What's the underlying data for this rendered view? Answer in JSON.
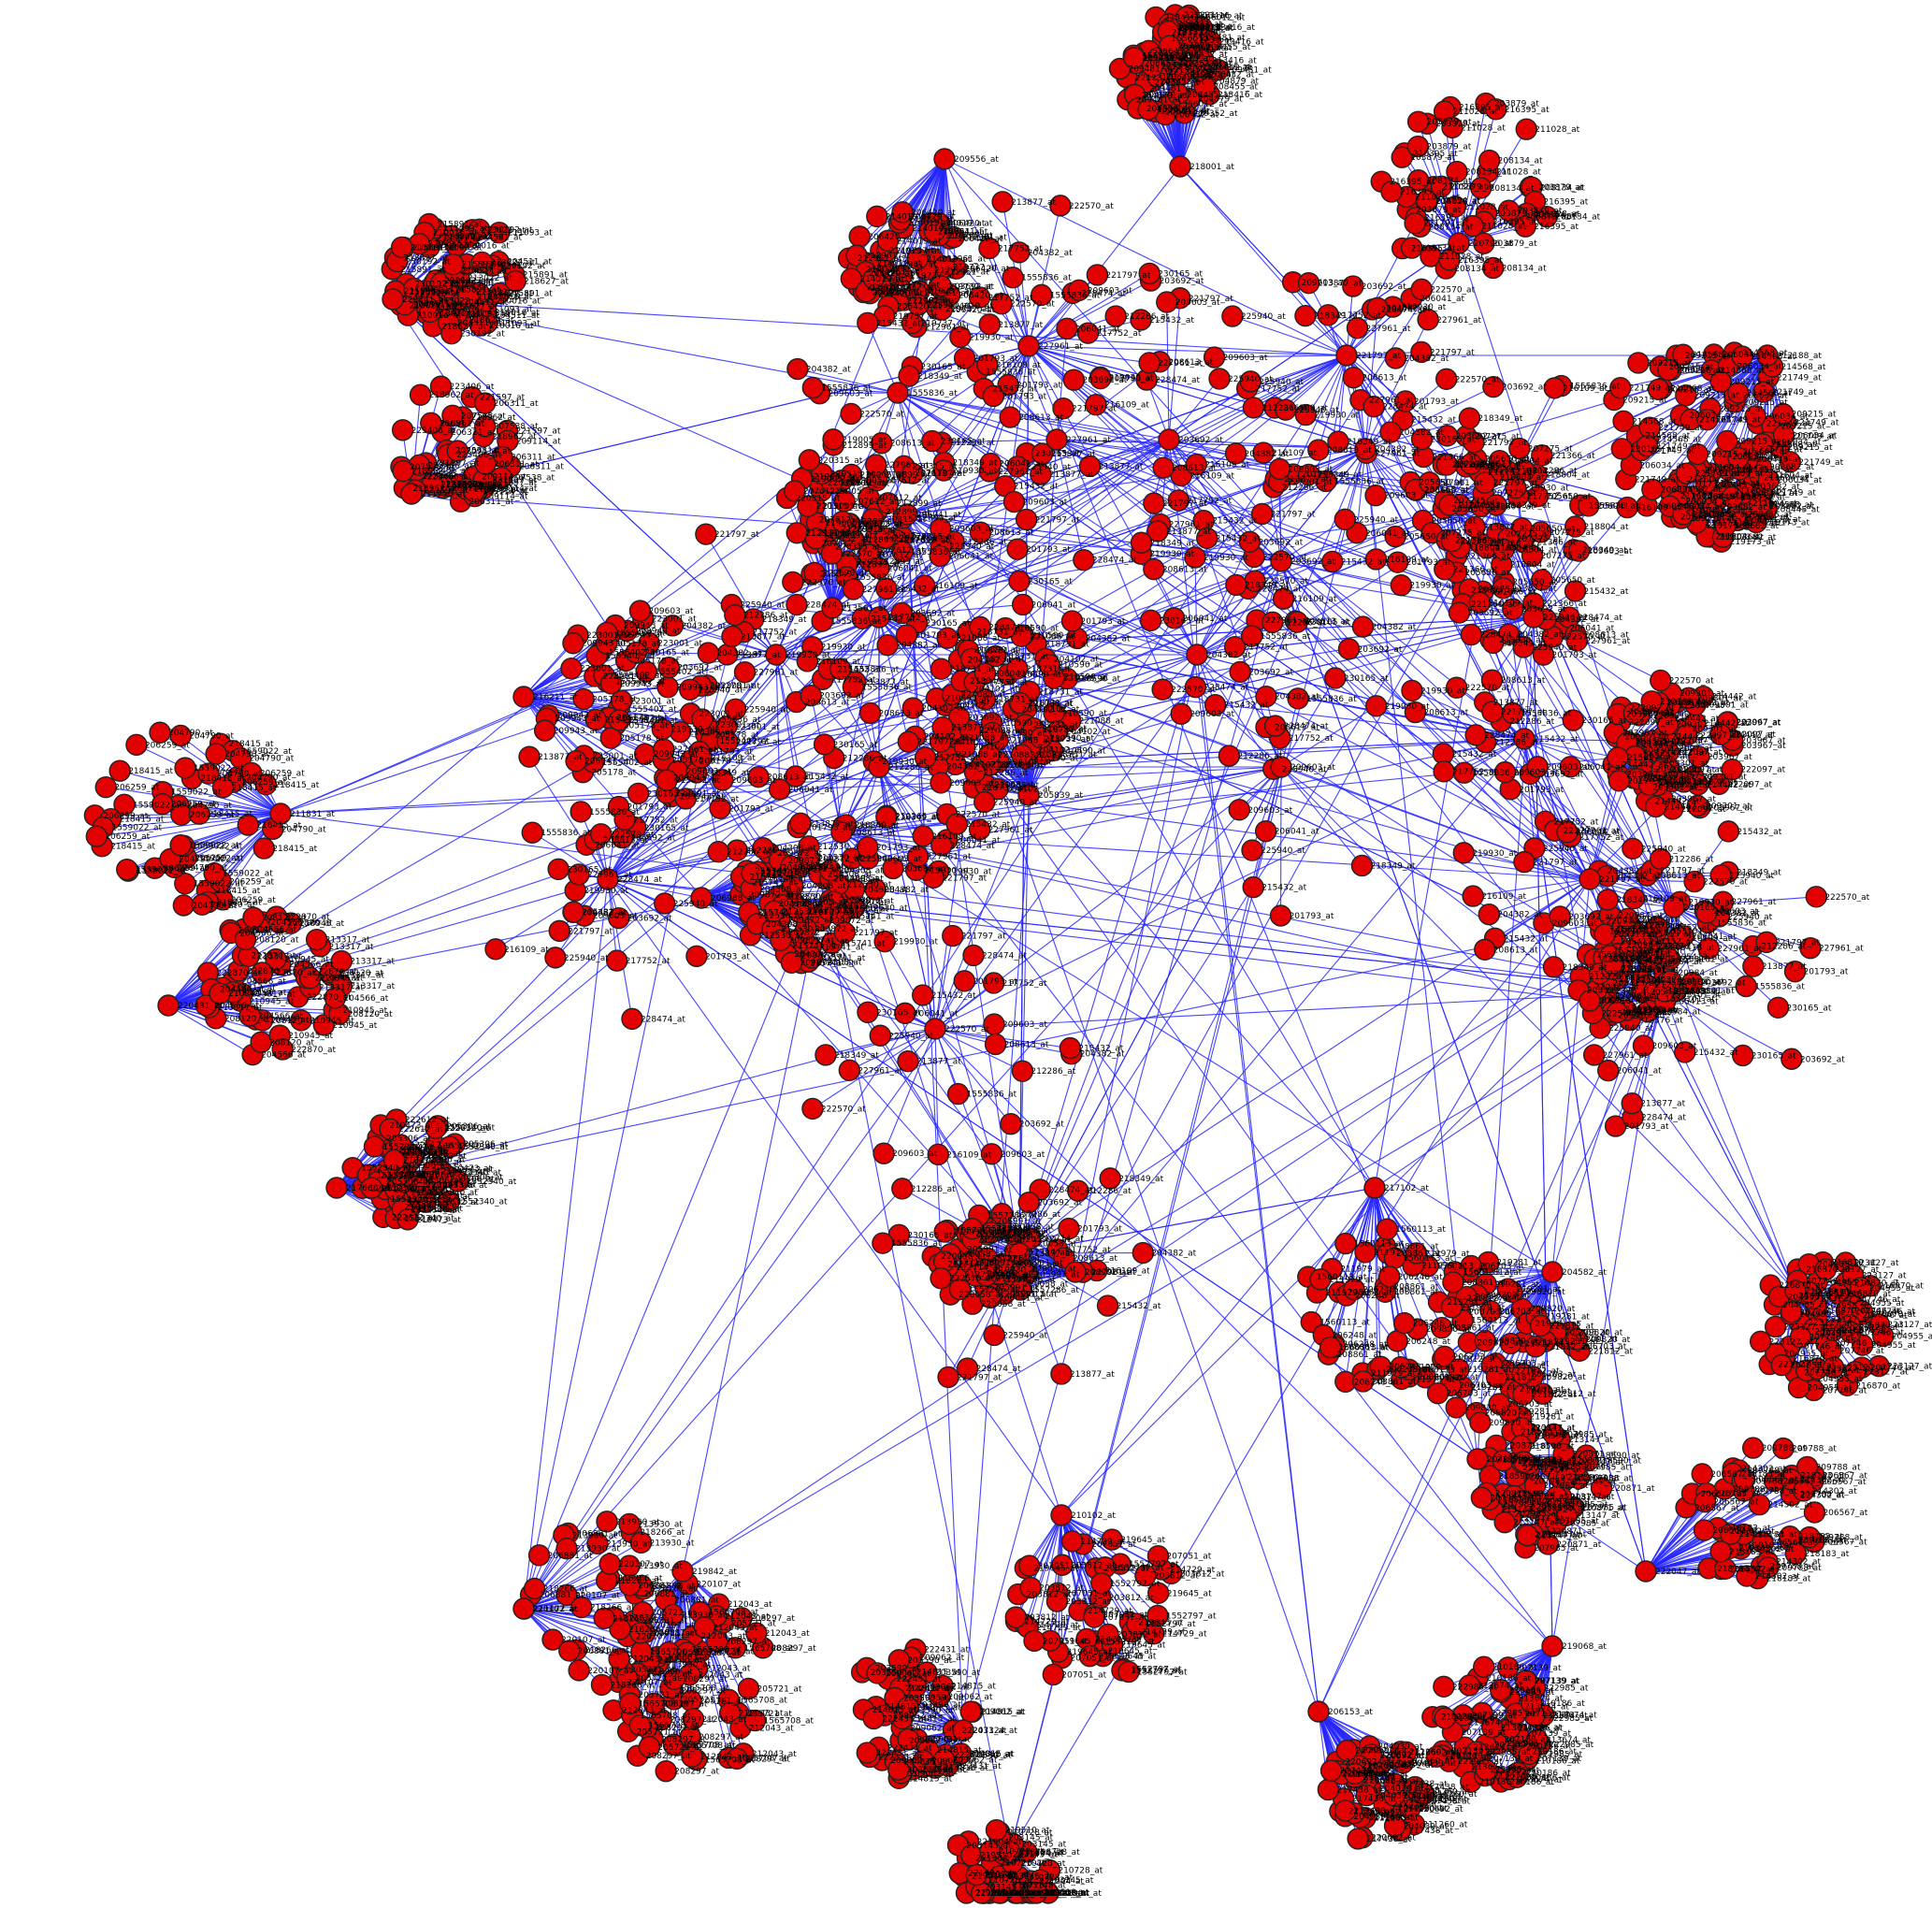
{
  "colors": {
    "node_fill": "#e30000",
    "node_stroke": "#222222",
    "edge": "#2626ff",
    "background": "#ffffff"
  },
  "graph": {
    "hubs": [
      {
        "id": "h1",
        "label": "218001_at",
        "leaf_labels": [
          "209481_at",
          "219352_at",
          "1556012_at",
          "213416_at",
          "206432_at",
          "221231_at",
          "204879_at",
          "208455_at"
        ]
      },
      {
        "id": "h2",
        "label": "229341_at",
        "leaf_labels": [
          "213022_at",
          "210016_at",
          "211093_at",
          "204511_at",
          "230192_at",
          "218627_at",
          "215891_at"
        ]
      },
      {
        "id": "h3",
        "label": "211756_at",
        "leaf_labels": [
          "209114_at",
          "223406_at",
          "218962_at",
          "207538_at",
          "221597_at",
          "206311_at"
        ]
      },
      {
        "id": "h4",
        "label": "220431_at",
        "leaf_labels": [
          "213317_at",
          "204566_at",
          "210945_at",
          "222870_at",
          "208120_at"
        ]
      },
      {
        "id": "h5",
        "label": "210102_at",
        "leaf_labels": [
          "219645_at",
          "203812_at",
          "1552797_at",
          "214729_at",
          "207051_at"
        ]
      },
      {
        "id": "h6",
        "label": "204582_at",
        "leaf_labels": [
          "209820_at",
          "219281_at",
          "206703_at",
          "221812_at"
        ]
      },
      {
        "id": "h7",
        "label": "208716_at",
        "leaf_labels": [
          "212376_at",
          "220984_at",
          "205413_at",
          "1553101_at"
        ]
      },
      {
        "id": "h8",
        "label": "215617_at",
        "leaf_labels": [
          "203967_at",
          "214442_at",
          "209301_at",
          "222097_at"
        ]
      },
      {
        "id": "h9",
        "label": "217102_at",
        "leaf_labels": [
          "208861_at",
          "211979_at",
          "206248_at",
          "1560113_at"
        ]
      },
      {
        "id": "h10",
        "label": "205839_at",
        "leaf_labels": [
          "218731_at",
          "210590_at",
          "221088_at",
          "204102_at"
        ]
      },
      {
        "id": "h11",
        "label": "213561_at",
        "leaf_labels": [
          "207612_at",
          "220315_at",
          "212899_at",
          "219005_at"
        ]
      },
      {
        "id": "h12",
        "label": "216211_at",
        "leaf_labels": [
          "209943_at",
          "223001_at",
          "205178_at",
          "1555402_at"
        ]
      },
      {
        "id": "h13",
        "label": "211472_at",
        "leaf_labels": [
          "206881_at",
          "218266_at",
          "213930_at",
          "220107_at"
        ]
      },
      {
        "id": "h14",
        "label": "207324_at",
        "leaf_labels": [
          "214815_at",
          "209062_at",
          "222431_at",
          "203590_at"
        ]
      },
      {
        "id": "h15",
        "label": "219842_at",
        "leaf_labels": [
          "208297_at",
          "212043_at",
          "1565708_at",
          "205721_at"
        ]
      },
      {
        "id": "h16",
        "label": "206153_at",
        "leaf_labels": [
          "211260_at",
          "220692_at",
          "217438_at",
          "204039_at"
        ]
      },
      {
        "id": "h17",
        "label": "213796_at",
        "leaf_labels": [
          "210728_at",
          "203145_at",
          "219510_at",
          "221904_at"
        ]
      },
      {
        "id": "h18",
        "label": "222047_at",
        "leaf_labels": [
          "206567_at",
          "214302_at",
          "209788_at",
          "218183_at"
        ]
      },
      {
        "id": "h19",
        "label": "208902_at",
        "leaf_labels": [
          "212714_at",
          "220058_at",
          "205991_at",
          "1557286_at"
        ]
      },
      {
        "id": "h20",
        "label": "210339_at",
        "leaf_labels": [
          "204955_at",
          "216870_at",
          "223127_at",
          "207746_at"
        ]
      },
      {
        "id": "h21",
        "label": "215063_at",
        "leaf_labels": [
          "219173_at",
          "211604_at",
          "208445_at",
          "203682_at"
        ]
      },
      {
        "id": "h22",
        "label": "212188_at",
        "leaf_labels": [
          "206034_at",
          "221749_at",
          "214568_at",
          "209215_at"
        ]
      },
      {
        "id": "h23",
        "label": "204217_at",
        "leaf_labels": [
          "218590_at",
          "213147_at",
          "207985_at",
          "220871_at"
        ]
      },
      {
        "id": "h24",
        "label": "217660_at",
        "leaf_labels": [
          "210473_at",
          "205306_at",
          "222612_at",
          "1552340_at"
        ]
      },
      {
        "id": "h25",
        "label": "209556_at",
        "leaf_labels": [
          "214019_at",
          "219737_at",
          "206420_at",
          "212961_at"
        ]
      },
      {
        "id": "h26",
        "label": "220796_at",
        "leaf_labels": [
          "208134_at",
          "203879_at",
          "216395_at",
          "211028_at"
        ]
      },
      {
        "id": "h27",
        "label": "213405_at",
        "leaf_labels": [
          "207275_at",
          "221366_at",
          "205650_at",
          "218804_at"
        ]
      },
      {
        "id": "h28",
        "label": "206988_at",
        "leaf_labels": [
          "212530_at",
          "209872_at",
          "215741_at",
          "204308_at"
        ]
      },
      {
        "id": "h29",
        "label": "219068_at",
        "leaf_labels": [
          "210186_at",
          "222985_at",
          "207139_at",
          "213674_at"
        ]
      },
      {
        "id": "h30",
        "label": "211831_at",
        "leaf_labels": [
          "204790_at",
          "218415_at",
          "1559022_at",
          "206259_at"
        ]
      }
    ],
    "loose_labels": [
      "221797_at",
      "227961_at",
      "203692_at",
      "204382_at",
      "218349_at",
      "225940_at",
      "209603_at",
      "215432_at",
      "230165_at",
      "201793_at",
      "217752_at",
      "1555836_at",
      "206041_at",
      "212286_at",
      "219930_at",
      "228474_at",
      "208613_at",
      "216109_at",
      "222570_at",
      "213877_at"
    ]
  }
}
